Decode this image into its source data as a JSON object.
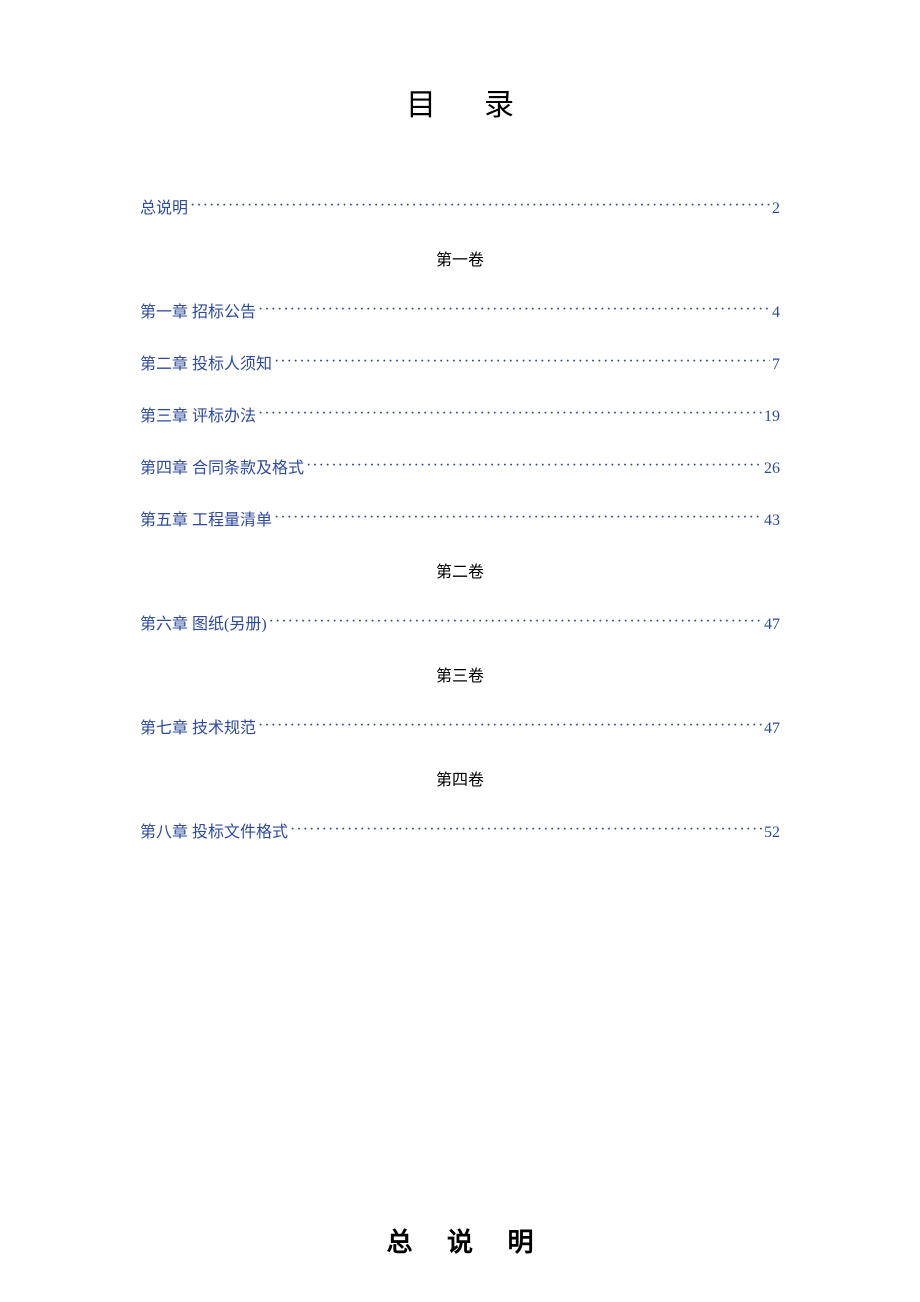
{
  "title": "目录",
  "link_color": "#2e4a9e",
  "text_color": "#000000",
  "background_color": "#ffffff",
  "toc": {
    "intro": {
      "label": "总说明",
      "page": "2"
    },
    "volumes": [
      {
        "heading": "第一卷",
        "entries": [
          {
            "label": "第一章  招标公告",
            "page": "4"
          },
          {
            "label": "第二章  投标人须知",
            "page": "7"
          },
          {
            "label": "第三章  评标办法",
            "page": "19"
          },
          {
            "label": "第四章  合同条款及格式",
            "page": "26"
          },
          {
            "label": "第五章  工程量清单",
            "page": "43"
          }
        ]
      },
      {
        "heading": "第二卷",
        "entries": [
          {
            "label": "第六章  图纸(另册)",
            "page": "47"
          }
        ]
      },
      {
        "heading": "第三卷",
        "entries": [
          {
            "label": "第七章  技术规范",
            "page": "47"
          }
        ]
      },
      {
        "heading": "第四卷",
        "entries": [
          {
            "label": "第八章  投标文件格式",
            "page": "52"
          }
        ]
      }
    ]
  },
  "section_title": "总  说  明"
}
